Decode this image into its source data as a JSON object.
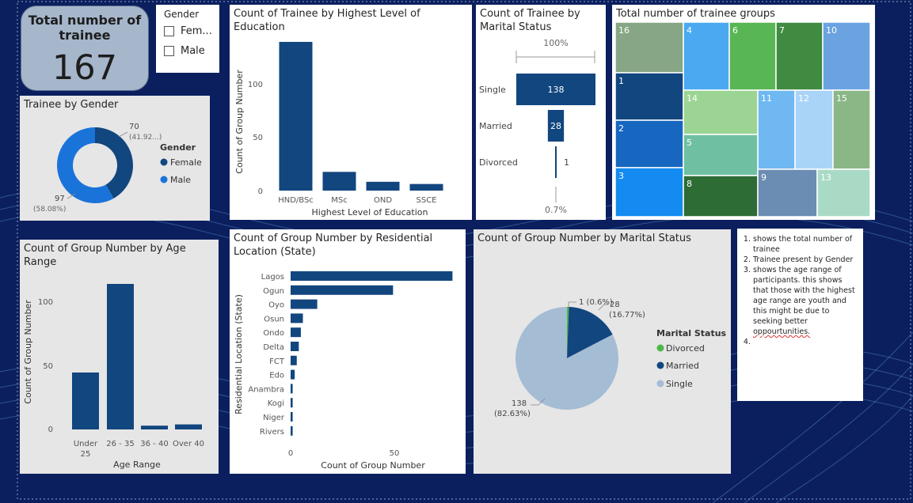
{
  "kpi": {
    "label": "Total number of trainee",
    "value": "167"
  },
  "gender_slicer": {
    "title": "Gender",
    "options": [
      "Fem...",
      "Male"
    ]
  },
  "notes": {
    "items": [
      "shows the total number of trainee",
      "Trainee present by Gender",
      "shows the age range  of participants. this shows that those with the highest age range are youth and this might be due to seeking better ",
      ""
    ],
    "misspelled_word": "oppourtunities."
  },
  "colors": {
    "dark_blue": "#12467f",
    "mid_blue": "#1a73d9",
    "light_blue_grey": "#a5bcd5",
    "green": "#4fb848",
    "background": "#0b1f5e"
  },
  "chart_data": [
    {
      "id": "gender",
      "type": "pie",
      "title": "Trainee by Gender",
      "legend_title": "Gender",
      "legend_position": "right",
      "donut": true,
      "categories": [
        "Female",
        "Male"
      ],
      "values": [
        70,
        97
      ],
      "labels": [
        "70",
        "97"
      ],
      "pct_labels": [
        "(41.92...)",
        "(58.08%)"
      ],
      "colors": [
        "#12467f",
        "#1a73d9"
      ]
    },
    {
      "id": "education",
      "type": "bar",
      "title": "Count of Trainee by Highest Level of Education",
      "xlabel": "Highest Level of Education",
      "ylabel": "Count of Group Number",
      "categories": [
        "HND/BSc",
        "MSc",
        "OND",
        "SSCE"
      ],
      "values": [
        135,
        17,
        8,
        6
      ],
      "ylim": [
        0,
        140
      ],
      "yticks": [
        "0",
        "50",
        "100"
      ],
      "color": "#12467f"
    },
    {
      "id": "marital_funnel",
      "type": "bar",
      "title": "Count of Trainee by Marital Status",
      "categories": [
        "Single",
        "Married",
        "Divorced"
      ],
      "values": [
        138,
        28,
        1
      ],
      "value_labels": [
        "138",
        "28",
        "1"
      ],
      "top_label": "100%",
      "bottom_label": "0.7%",
      "color": "#12467f"
    },
    {
      "id": "treemap",
      "type": "heatmap",
      "title": "Total number of trainee groups",
      "cells": [
        {
          "label": "16",
          "color": "#87a685"
        },
        {
          "label": "4",
          "color": "#4aa9f0"
        },
        {
          "label": "6",
          "color": "#58b654"
        },
        {
          "label": "7",
          "color": "#3f8b42"
        },
        {
          "label": "10",
          "color": "#6aa3e0"
        },
        {
          "label": "1",
          "color": "#12467f"
        },
        {
          "label": "14",
          "color": "#9cd493"
        },
        {
          "label": "11",
          "color": "#6fb8f2"
        },
        {
          "label": "12",
          "color": "#a9d4f7"
        },
        {
          "label": "15",
          "color": "#8bb686"
        },
        {
          "label": "2",
          "color": "#1766c0"
        },
        {
          "label": "5",
          "color": "#6fc0a3"
        },
        {
          "label": "3",
          "color": "#138bf0"
        },
        {
          "label": "8",
          "color": "#2e6c36"
        },
        {
          "label": "9",
          "color": "#6c8db3"
        },
        {
          "label": "13",
          "color": "#a9dac6"
        }
      ]
    },
    {
      "id": "age",
      "type": "bar",
      "title": "Count of Group Number by Age Range",
      "xlabel": "Age Range",
      "ylabel": "Count of Group Number",
      "categories": [
        "Under 25",
        "26 - 35",
        "36 - 40",
        "Over 40"
      ],
      "values": [
        45,
        115,
        3,
        4
      ],
      "ylim": [
        0,
        125
      ],
      "yticks": [
        "0",
        "50",
        "100"
      ],
      "color": "#12467f"
    },
    {
      "id": "location",
      "type": "bar",
      "orientation": "horizontal",
      "title": "Count of Group Number by Residential Location (State)",
      "xlabel": "Count of Group Number",
      "ylabel": "Residential Location (State)",
      "categories": [
        "Lagos",
        "Ogun",
        "Oyo",
        "Osun",
        "Ondo",
        "Delta",
        "FCT",
        "Edo",
        "Anambra",
        "Kogi",
        "Niger",
        "Rivers"
      ],
      "values": [
        79,
        50,
        13,
        6,
        5,
        4,
        3,
        2,
        1,
        1,
        1,
        1
      ],
      "xlim": [
        0,
        80
      ],
      "xticks": [
        "0",
        "50"
      ],
      "color": "#12467f"
    },
    {
      "id": "marital_pie",
      "type": "pie",
      "title": "Count of Group Number by Marital Status",
      "legend_title": "Marital Status",
      "legend_position": "right",
      "categories": [
        "Divorced",
        "Married",
        "Single"
      ],
      "values": [
        1,
        28,
        138
      ],
      "labels": [
        "1 (0.6%)",
        "28",
        "138"
      ],
      "pct_labels": [
        "",
        "(16.77%)",
        "(82.63%)"
      ],
      "colors": [
        "#4fb848",
        "#12467f",
        "#a5bcd5"
      ]
    }
  ]
}
